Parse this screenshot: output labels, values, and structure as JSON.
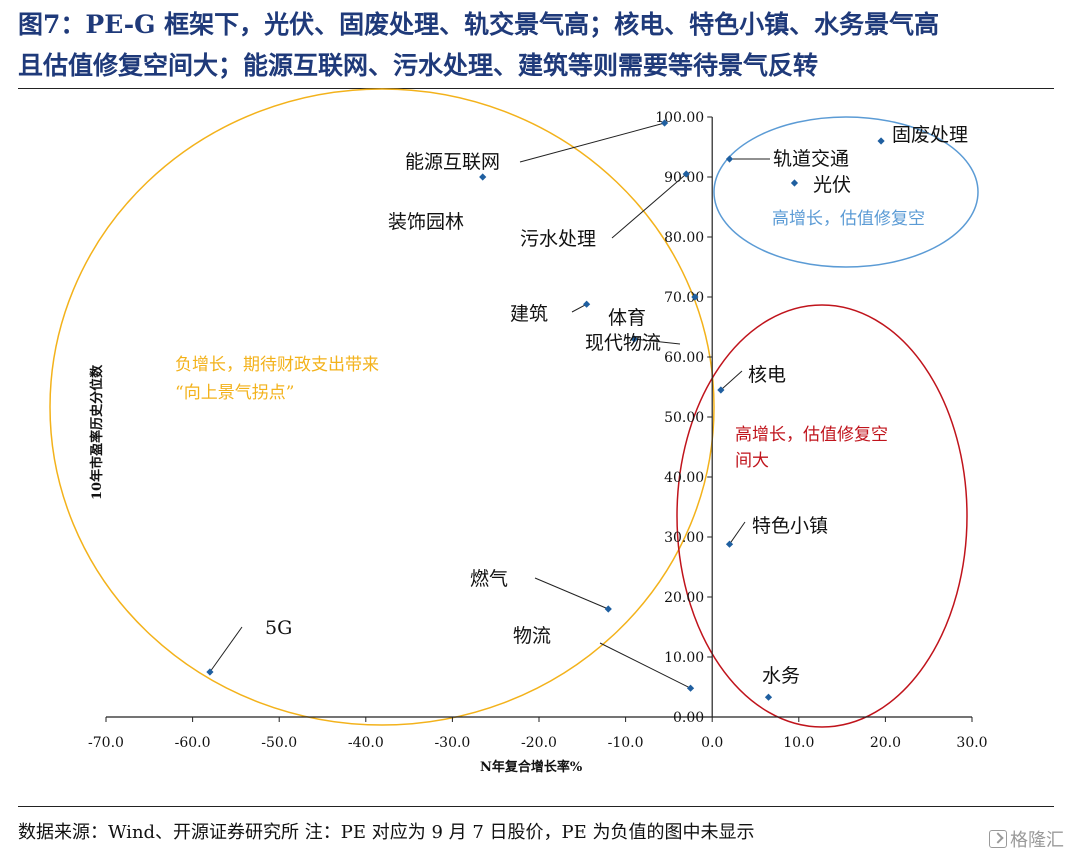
{
  "title_line1": "图7：PE-G 框架下，光伏、固废处理、轨交景气高；核电、特色小镇、水务景气高",
  "title_line2": "且估值修复空间大；能源互联网、污水处理、建筑等则需要等待景气反转",
  "source": "数据来源：Wind、开源证券研究所 注：PE 对应为 9 月 7 日股价，PE 为负值的图中未显示",
  "watermark": "格隆汇",
  "colors": {
    "title": "#1f3a7a",
    "point": "#1f5fa0",
    "yellow": "#f3b21b",
    "blue": "#5b9bd5",
    "red": "#c0141c"
  },
  "chart_data": {
    "type": "scatter",
    "xlabel": "N年复合增长率%",
    "ylabel": "10年市盈率历史分位数",
    "xlim": [
      -70,
      30
    ],
    "ylim": [
      0,
      100
    ],
    "x_ticks": [
      "-70.0",
      "-60.0",
      "-50.0",
      "-40.0",
      "-30.0",
      "-20.0",
      "-10.0",
      "0.0",
      "10.0",
      "20.0",
      "30.0"
    ],
    "y_ticks": [
      "0.00",
      "10.00",
      "20.00",
      "30.00",
      "40.00",
      "50.00",
      "60.00",
      "70.00",
      "80.00",
      "90.00",
      "100.00"
    ],
    "points": [
      {
        "name": "能源互联网",
        "x": -5.5,
        "y": 99.0
      },
      {
        "name": "装饰园林",
        "x": -26.5,
        "y": 90.0
      },
      {
        "name": "污水处理",
        "x": -3.0,
        "y": 90.5
      },
      {
        "name": "建筑",
        "x": -14.5,
        "y": 68.8
      },
      {
        "name": "体育",
        "x": -2.0,
        "y": 70.0
      },
      {
        "name": "现代物流",
        "x": -9.0,
        "y": 63.0
      },
      {
        "name": "轨道交通",
        "x": 2.0,
        "y": 93.0
      },
      {
        "name": "固废处理",
        "x": 19.5,
        "y": 96.0
      },
      {
        "name": "光伏",
        "x": 9.5,
        "y": 89.0
      },
      {
        "name": "核电",
        "x": 1.0,
        "y": 54.5
      },
      {
        "name": "特色小镇",
        "x": 2.0,
        "y": 28.8
      },
      {
        "name": "燃气",
        "x": -12.0,
        "y": 18.0
      },
      {
        "name": "物流",
        "x": -2.5,
        "y": 4.8
      },
      {
        "name": "5G",
        "x": -58.0,
        "y": 7.5
      },
      {
        "name": "水务",
        "x": 6.5,
        "y": 3.3
      }
    ],
    "annotations": [
      {
        "line1": "负增长，期待财政支出带来",
        "line2": "“向上景气拐点”"
      },
      {
        "line1": "高增长，估值修复空",
        "line2": ""
      },
      {
        "line1": "高增长，估值修复空",
        "line2": "间大"
      }
    ]
  }
}
